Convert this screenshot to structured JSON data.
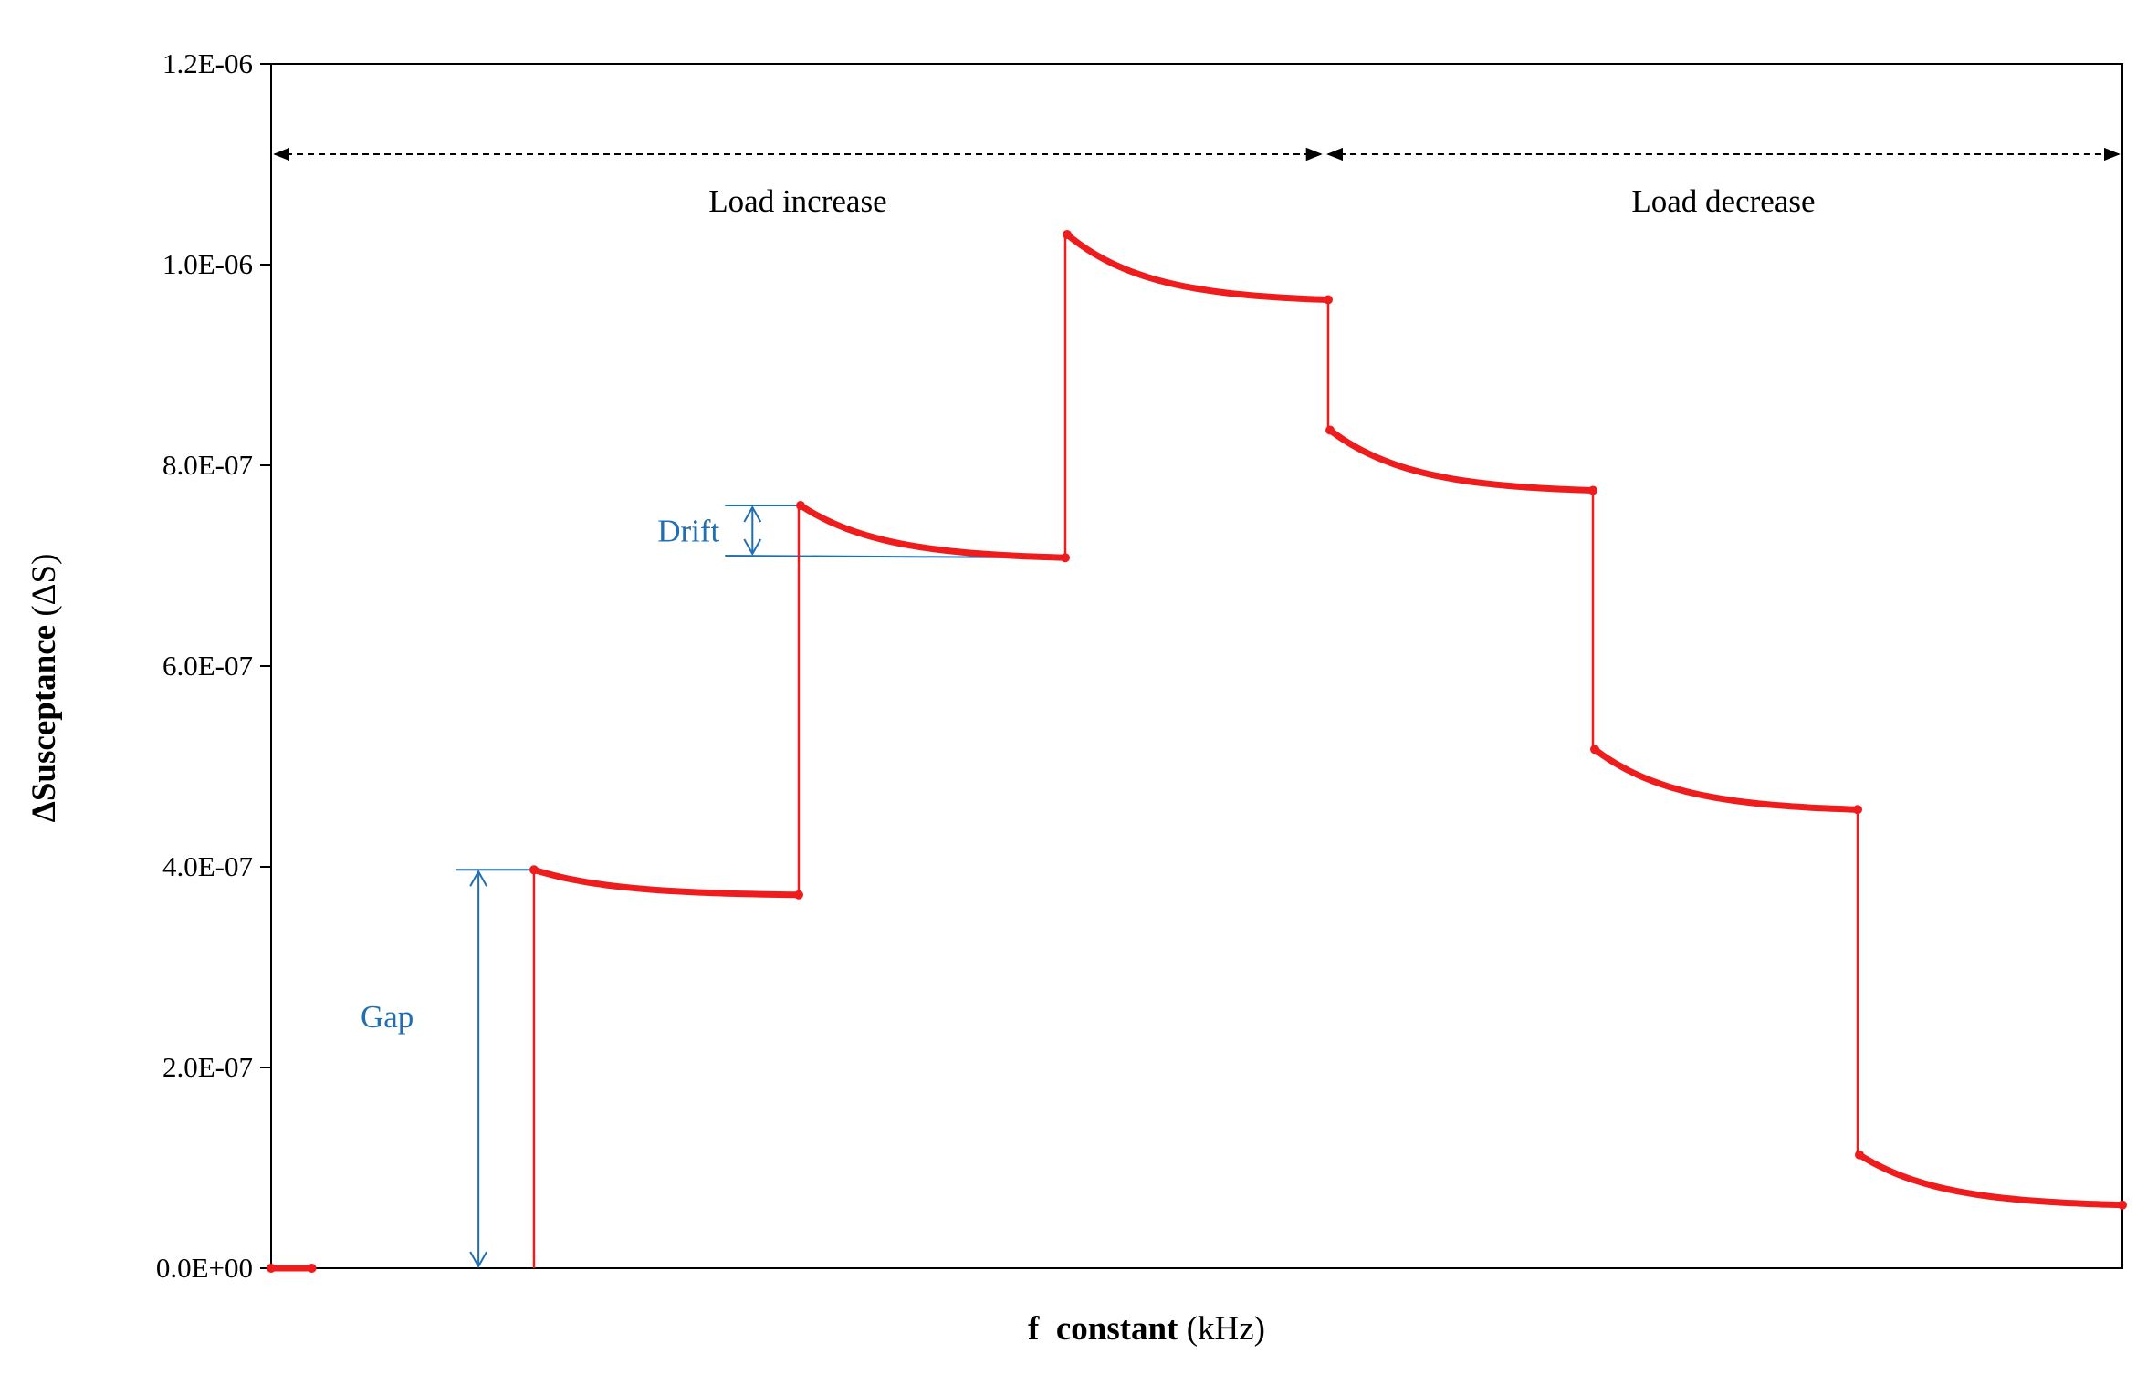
{
  "colors": {
    "series": "#ee1c1c",
    "annotation": "#1f6fb5",
    "axis": "#000000"
  },
  "chart_data": {
    "type": "line",
    "title": "",
    "xlabel_bold": "f  constant",
    "xlabel_unit": " (kHz)",
    "ylabel_bold": "ΔSusceptance",
    "ylabel_unit": " (ΔS)",
    "xlim": [
      0,
      100
    ],
    "ylim": [
      0,
      1.2e-06
    ],
    "x_tick_labels": [],
    "y_tick_labels": [
      "0.0E+00",
      "2.0E-07",
      "4.0E-07",
      "6.0E-07",
      "8.0E-07",
      "1.0E-06",
      "1.2E-06"
    ],
    "y_ticks": [
      0,
      2e-07,
      4e-07,
      6e-07,
      8e-07,
      1e-06,
      1.2e-06
    ],
    "grid": false,
    "series": [
      {
        "segments": [
          {
            "x0": 0.0,
            "x1": 2.2,
            "y0": 0.0,
            "y1": 0.0
          },
          {
            "x0": 14.2,
            "x1": 28.5,
            "y0": 3.97e-07,
            "y1": 3.72e-07
          },
          {
            "x0": 28.6,
            "x1": 42.9,
            "y0": 7.6e-07,
            "y1": 7.08e-07
          },
          {
            "x0": 43.0,
            "x1": 57.1,
            "y0": 1.03e-06,
            "y1": 9.65e-07
          },
          {
            "x0": 57.2,
            "x1": 71.4,
            "y0": 8.35e-07,
            "y1": 7.75e-07
          },
          {
            "x0": 71.5,
            "x1": 85.7,
            "y0": 5.17e-07,
            "y1": 4.57e-07
          },
          {
            "x0": 85.8,
            "x1": 100.0,
            "y0": 1.13e-07,
            "y1": 6.3e-08
          }
        ],
        "step_lines": [
          {
            "x": 14.2,
            "y0": 0.0,
            "y1": 3.97e-07
          },
          {
            "x": 28.5,
            "y0": 3.72e-07,
            "y1": 7.6e-07
          },
          {
            "x": 42.9,
            "y0": 7.08e-07,
            "y1": 1.03e-06
          },
          {
            "x": 57.1,
            "y0": 9.65e-07,
            "y1": 8.35e-07
          },
          {
            "x": 71.4,
            "y0": 7.75e-07,
            "y1": 5.17e-07
          },
          {
            "x": 85.7,
            "y0": 4.57e-07,
            "y1": 1.13e-07
          }
        ]
      }
    ],
    "regions": [
      {
        "label": "Load increase",
        "x0": 0,
        "x1": 56.9,
        "y": 1.11e-06
      },
      {
        "label": "Load decrease",
        "x0": 56.9,
        "x1": 100.0,
        "y": 1.11e-06
      }
    ],
    "annotations": [
      {
        "label": "Drift",
        "x": 26.0,
        "y_top": 7.6e-07,
        "y_bottom": 7.1e-07
      },
      {
        "label": "Gap",
        "x": 11.2,
        "y_top": 3.97e-07,
        "y_bottom": 0.0
      }
    ]
  }
}
